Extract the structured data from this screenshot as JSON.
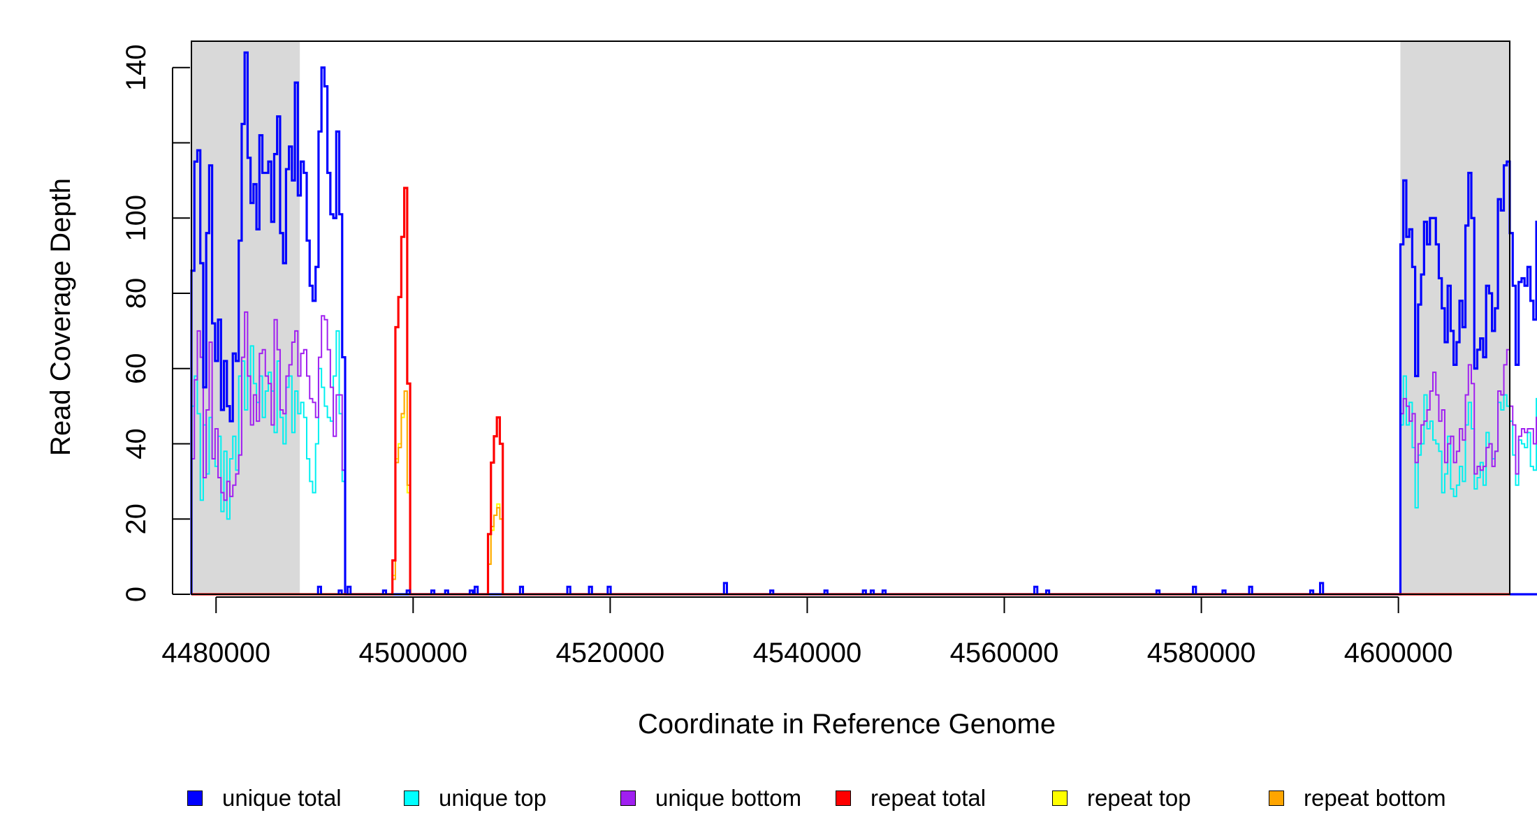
{
  "chart_data": {
    "type": "line",
    "title": "",
    "xlabel": "Coordinate in Reference Genome",
    "ylabel": "Read Coverage Depth",
    "xlim": [
      4477500,
      4611300
    ],
    "ylim": [
      0,
      147
    ],
    "x_ticks": [
      4480000,
      4500000,
      4520000,
      4540000,
      4560000,
      4580000,
      4600000
    ],
    "x_tick_labels": [
      "4480000",
      "4500000",
      "4520000",
      "4540000",
      "4560000",
      "4580000",
      "4600000"
    ],
    "y_ticks": [
      0,
      20,
      40,
      60,
      80,
      100,
      120,
      140
    ],
    "y_tick_labels": [
      "0",
      "20",
      "40",
      "60",
      "80",
      "100",
      "",
      "140"
    ],
    "shaded_regions": [
      {
        "x0": 4477500,
        "x1": 4488500,
        "color": "#d9d9d9"
      },
      {
        "x0": 4600200,
        "x1": 4611300,
        "color": "#d9d9d9"
      }
    ],
    "series": [
      {
        "name": "unique total",
        "color": "#0000ff",
        "step": 300,
        "segments": [
          {
            "x_start": 4477500,
            "values": [
              86,
              115,
              118,
              88,
              55,
              96,
              114,
              72,
              62,
              73,
              49,
              62,
              50,
              46,
              64,
              62,
              94,
              125,
              144,
              116,
              104,
              109,
              97,
              122,
              112,
              112,
              115,
              99,
              117,
              127,
              96,
              88,
              113,
              119,
              110,
              136,
              106,
              115,
              112,
              94,
              82,
              78,
              87,
              123,
              140,
              135,
              112,
              101,
              100,
              123,
              101,
              63
            ]
          },
          {
            "x_start": 4600200,
            "values": [
              93,
              110,
              95,
              97,
              87,
              58,
              77,
              85,
              99,
              93,
              100,
              100,
              93,
              84,
              76,
              67,
              82,
              70,
              61,
              67,
              78,
              71,
              98,
              112,
              100,
              60,
              65,
              68,
              63,
              82,
              80,
              70,
              76,
              105,
              102,
              114,
              115,
              96,
              82,
              61,
              83,
              84,
              82,
              87,
              78,
              73,
              99,
              67
            ]
          }
        ]
      },
      {
        "name": "unique top",
        "color": "#00f0f0",
        "step": 300,
        "segments": [
          {
            "x_start": 4477500,
            "values": [
              50,
              58,
              48,
              25,
              45,
              32,
              47,
              36,
              34,
              42,
              22,
              38,
              20,
              36,
              42,
              33,
              58,
              62,
              49,
              58,
              66,
              56,
              51,
              58,
              47,
              54,
              59,
              54,
              43,
              62,
              47,
              40,
              55,
              58,
              43,
              54,
              48,
              51,
              47,
              36,
              30,
              27,
              40,
              60,
              55,
              50,
              47,
              46,
              58,
              70,
              48,
              30
            ]
          },
          {
            "x_start": 4600200,
            "values": [
              45,
              58,
              45,
              51,
              39,
              23,
              37,
              40,
              53,
              44,
              46,
              41,
              40,
              38,
              27,
              32,
              42,
              28,
              26,
              29,
              34,
              30,
              45,
              51,
              44,
              28,
              31,
              35,
              29,
              43,
              40,
              36,
              38,
              51,
              49,
              53,
              50,
              46,
              37,
              29,
              41,
              40,
              39,
              43,
              34,
              33,
              52,
              27
            ]
          }
        ]
      },
      {
        "name": "unique bottom",
        "color": "#a020f0",
        "step": 300,
        "segments": [
          {
            "x_start": 4477500,
            "values": [
              36,
              57,
              70,
              63,
              31,
              49,
              67,
              36,
              44,
              31,
              27,
              25,
              30,
              26,
              29,
              32,
              37,
              63,
              75,
              58,
              45,
              53,
              46,
              64,
              65,
              58,
              56,
              45,
              73,
              65,
              49,
              48,
              58,
              61,
              67,
              70,
              58,
              64,
              65,
              58,
              52,
              51,
              47,
              63,
              74,
              73,
              65,
              55,
              42,
              53,
              53,
              33
            ]
          },
          {
            "x_start": 4600200,
            "values": [
              48,
              52,
              50,
              46,
              48,
              35,
              40,
              45,
              46,
              49,
              54,
              59,
              53,
              46,
              49,
              35,
              40,
              42,
              35,
              38,
              44,
              41,
              53,
              61,
              56,
              32,
              34,
              33,
              34,
              39,
              40,
              34,
              38,
              54,
              53,
              61,
              65,
              50,
              45,
              32,
              42,
              44,
              43,
              44,
              44,
              40,
              47,
              40
            ]
          }
        ]
      },
      {
        "name": "repeat total",
        "color": "#ff0000",
        "step": 300,
        "segments": [
          {
            "x_start": 4497900,
            "values": [
              9,
              71,
              79,
              95,
              108,
              56
            ]
          },
          {
            "x_start": 4507600,
            "values": [
              16,
              35,
              42,
              47,
              40
            ]
          }
        ]
      },
      {
        "name": "repeat top",
        "color": "#ffff00",
        "step": 300,
        "segments": [
          {
            "x_start": 4497900,
            "values": [
              5,
              36,
              40,
              47,
              54,
              27
            ]
          },
          {
            "x_start": 4507600,
            "values": [
              8,
              17,
              21,
              24,
              20
            ]
          }
        ]
      },
      {
        "name": "repeat bottom",
        "color": "#ffa500",
        "step": 300,
        "segments": [
          {
            "x_start": 4497900,
            "values": [
              4,
              35,
              39,
              48,
              54,
              29
            ]
          },
          {
            "x_start": 4507600,
            "values": [
              8,
              18,
              21,
              23,
              20
            ]
          }
        ]
      }
    ],
    "small_blips": [
      {
        "x": 4490500,
        "y": 2
      },
      {
        "x": 4492600,
        "y": 1
      },
      {
        "x": 4493500,
        "y": 2
      },
      {
        "x": 4497100,
        "y": 1
      },
      {
        "x": 4499500,
        "y": 1
      },
      {
        "x": 4502000,
        "y": 1
      },
      {
        "x": 4503400,
        "y": 1
      },
      {
        "x": 4505900,
        "y": 1
      },
      {
        "x": 4506400,
        "y": 2
      },
      {
        "x": 4511000,
        "y": 2
      },
      {
        "x": 4515800,
        "y": 2
      },
      {
        "x": 4518000,
        "y": 2
      },
      {
        "x": 4519900,
        "y": 2
      },
      {
        "x": 4531700,
        "y": 3
      },
      {
        "x": 4536400,
        "y": 1
      },
      {
        "x": 4541900,
        "y": 1
      },
      {
        "x": 4545800,
        "y": 1
      },
      {
        "x": 4546600,
        "y": 1
      },
      {
        "x": 4547800,
        "y": 1
      },
      {
        "x": 4563200,
        "y": 2
      },
      {
        "x": 4564400,
        "y": 1
      },
      {
        "x": 4575600,
        "y": 1
      },
      {
        "x": 4579300,
        "y": 2
      },
      {
        "x": 4582300,
        "y": 1
      },
      {
        "x": 4585000,
        "y": 2
      },
      {
        "x": 4591200,
        "y": 1
      },
      {
        "x": 4592200,
        "y": 3
      }
    ],
    "legend": [
      {
        "label": "unique total",
        "color": "#0000ff"
      },
      {
        "label": "unique top",
        "color": "#00ffff"
      },
      {
        "label": "unique bottom",
        "color": "#a020f0"
      },
      {
        "label": "repeat total",
        "color": "#ff0000"
      },
      {
        "label": "repeat top",
        "color": "#ffff00"
      },
      {
        "label": "repeat bottom",
        "color": "#ffa500"
      }
    ],
    "legend_placement": "bottom",
    "grid": false
  }
}
